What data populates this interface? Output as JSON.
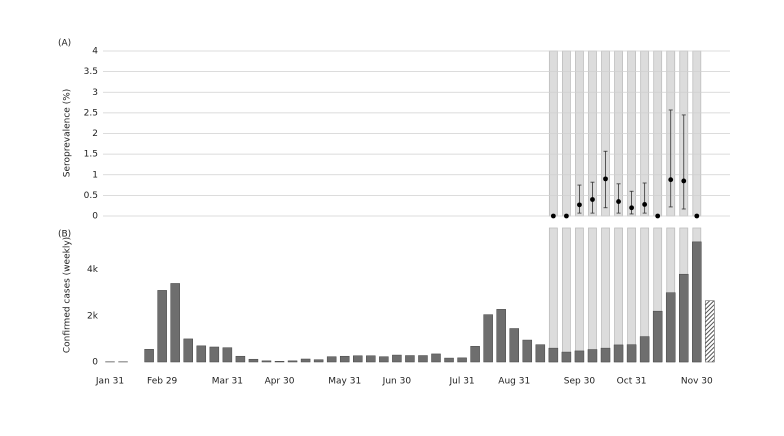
{
  "chart_data": [
    {
      "type": "errorbar",
      "panel": "(A)",
      "y_label": "Seroprevalence (%)",
      "values": [
        0,
        0,
        0.27,
        0.4,
        0.9,
        0.35,
        0.2,
        0.28,
        0,
        0.88,
        0.85,
        0
      ],
      "error_low": [
        null,
        null,
        0.07,
        0.07,
        0.2,
        0.07,
        0.05,
        0.07,
        null,
        0.22,
        0.17,
        null
      ],
      "error_high": [
        null,
        null,
        0.75,
        0.82,
        1.57,
        0.78,
        0.6,
        0.8,
        null,
        2.57,
        2.45,
        null
      ],
      "color": "#000000",
      "ylim": [
        0,
        4
      ],
      "yticks": [
        0,
        0.5,
        1,
        1.5,
        2,
        2.5,
        3,
        3.5,
        4
      ],
      "grid": true
    },
    {
      "type": "bar",
      "panel": "(B)",
      "y_label": "Confirmed cases (weekly)",
      "categories": [
        "Jan 31",
        null,
        null,
        null,
        "Feb 29",
        null,
        null,
        null,
        null,
        "Mar 31",
        null,
        null,
        null,
        "Apr 30",
        null,
        null,
        null,
        null,
        "May 31",
        null,
        null,
        null,
        "Jun 30",
        null,
        null,
        null,
        null,
        "Jul 31",
        null,
        null,
        null,
        "Aug 31",
        null,
        null,
        null,
        null,
        "Sep 30",
        null,
        null,
        null,
        "Oct 31",
        null,
        null,
        null,
        null,
        "Nov 30",
        null
      ],
      "values": [
        10,
        10,
        0,
        550,
        3100,
        3400,
        1000,
        700,
        650,
        620,
        250,
        120,
        50,
        30,
        50,
        130,
        100,
        230,
        250,
        270,
        270,
        230,
        300,
        280,
        280,
        350,
        170,
        180,
        680,
        2050,
        2280,
        1450,
        950,
        750,
        600,
        430,
        480,
        540,
        600,
        740,
        750,
        1100,
        2200,
        3000,
        3800,
        5200,
        2650
      ],
      "color": "#6e6e6e",
      "ylim": [
        0,
        5800
      ],
      "yticks": [
        0,
        {
          "value": 2000,
          "label": "2k"
        },
        {
          "value": 4000,
          "label": "4k"
        }
      ],
      "grid": false
    }
  ]
}
